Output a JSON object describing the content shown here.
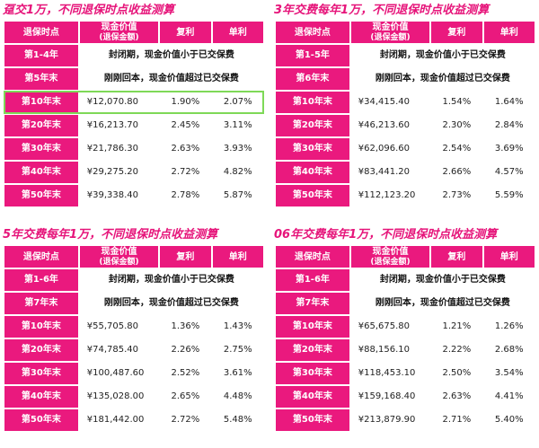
{
  "panels": [
    {
      "title": "趸交1万，不同退保时点收益测算",
      "header": [
        "退保时点",
        "现金价值",
        "(退保金额)",
        "复利",
        "单利"
      ],
      "merged": [
        {
          "label": "第1-4年",
          "text": "封闭期，现金价值小于已交保费"
        },
        {
          "label": "第5年末",
          "text": "刚刚回本，现金价值超过已交保费"
        }
      ],
      "rows": [
        {
          "label": "第10年末",
          "value": "¥12,070.80",
          "compound": "1.90%",
          "simple": "2.07%"
        },
        {
          "label": "第20年末",
          "value": "¥16,213.70",
          "compound": "2.45%",
          "simple": "3.11%"
        },
        {
          "label": "第30年末",
          "value": "¥21,786.30",
          "compound": "2.63%",
          "simple": "3.93%"
        },
        {
          "label": "第40年末",
          "value": "¥29,275.20",
          "compound": "2.72%",
          "simple": "4.82%"
        },
        {
          "label": "第50年末",
          "value": "¥39,338.40",
          "compound": "2.78%",
          "simple": "5.87%"
        }
      ]
    },
    {
      "title": "3年交费每年1万，不同退保时点收益测算",
      "header": [
        "退保时点",
        "现金价值",
        "(退保金额)",
        "复利",
        "单利"
      ],
      "merged": [
        {
          "label": "第1-5年",
          "text": "封闭期，现金价值小于已交保费"
        },
        {
          "label": "第6年末",
          "text": "刚刚回本，现金价值超过已交保费"
        }
      ],
      "rows": [
        {
          "label": "第10年末",
          "value": "¥34,415.40",
          "compound": "1.54%",
          "simple": "1.64%"
        },
        {
          "label": "第20年末",
          "value": "¥46,213.60",
          "compound": "2.30%",
          "simple": "2.84%"
        },
        {
          "label": "第30年末",
          "value": "¥62,096.60",
          "compound": "2.54%",
          "simple": "3.69%"
        },
        {
          "label": "第40年末",
          "value": "¥83,441.20",
          "compound": "2.66%",
          "simple": "4.57%"
        },
        {
          "label": "第50年末",
          "value": "¥112,123.20",
          "compound": "2.73%",
          "simple": "5.59%"
        }
      ]
    },
    {
      "title": "5年交费每年1万，不同退保时点收益测算",
      "header": [
        "退保时点",
        "现金价值",
        "(退保金额)",
        "复利",
        "单利"
      ],
      "merged": [
        {
          "label": "第1-6年",
          "text": "封闭期，现金价值小于已交保费"
        },
        {
          "label": "第7年末",
          "text": "刚刚回本，现金价值超过已交保费"
        }
      ],
      "rows": [
        {
          "label": "第10年末",
          "value": "¥55,705.80",
          "compound": "1.36%",
          "simple": "1.43%"
        },
        {
          "label": "第20年末",
          "value": "¥74,785.40",
          "compound": "2.26%",
          "simple": "2.75%"
        },
        {
          "label": "第30年末",
          "value": "¥100,487.60",
          "compound": "2.52%",
          "simple": "3.61%"
        },
        {
          "label": "第40年末",
          "value": "¥135,028.00",
          "compound": "2.65%",
          "simple": "4.48%"
        },
        {
          "label": "第50年末",
          "value": "¥181,442.00",
          "compound": "2.72%",
          "simple": "5.48%"
        }
      ]
    },
    {
      "title": "06年交费每年1万，不同退保时点收益测算",
      "header": [
        "退保时点",
        "现金价值",
        "(退保金额)",
        "复利",
        "单利"
      ],
      "merged": [
        {
          "label": "第1-6年",
          "text": "封闭期，现金价值小于已交保费"
        },
        {
          "label": "第7年末",
          "text": "刚刚回本，现金价值超过已交保费"
        }
      ],
      "rows": [
        {
          "label": "第10年末",
          "value": "¥65,675.80",
          "compound": "1.21%",
          "simple": "1.26%"
        },
        {
          "label": "第20年末",
          "value": "¥88,156.10",
          "compound": "2.22%",
          "simple": "2.68%"
        },
        {
          "label": "第30年末",
          "value": "¥118,453.10",
          "compound": "2.50%",
          "simple": "3.54%"
        },
        {
          "label": "第40年末",
          "value": "¥159,168.40",
          "compound": "2.63%",
          "simple": "4.41%"
        },
        {
          "label": "第50年末",
          "value": "¥213,879.90",
          "compound": "2.71%",
          "simple": "5.40%"
        }
      ]
    }
  ],
  "colors": {
    "brand": "#ea197e",
    "title": "#e6147a",
    "highlight": "#7ed957"
  },
  "highlight_row": {
    "panel": 0,
    "row": 0
  }
}
